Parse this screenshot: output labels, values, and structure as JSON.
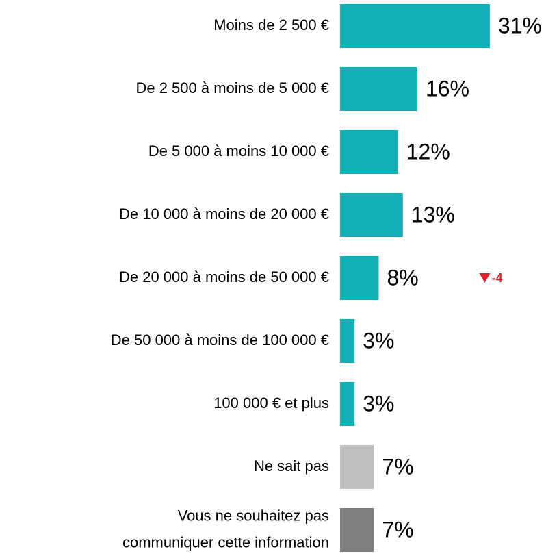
{
  "chart_data": {
    "type": "bar",
    "orientation": "horizontal",
    "categories": [
      "Moins de 2 500 €",
      "De 2 500 à moins de 5 000 €",
      "De 5 000 à moins 10 000 €",
      "De 10 000 à moins de 20 000 €",
      "De 20 000 à moins de 50 000 €",
      "De 50 000 à moins de 100 000 €",
      "100 000 € et plus",
      "Ne sait pas",
      "Vous ne souhaitez pas\ncommuniquer cette information"
    ],
    "values": [
      31,
      16,
      12,
      13,
      8,
      3,
      3,
      7,
      7
    ],
    "value_labels": [
      "31%",
      "16%",
      "12%",
      "13%",
      "8%",
      "3%",
      "3%",
      "7%",
      "7%"
    ],
    "colors": [
      "#14b0b8",
      "#14b0b8",
      "#14b0b8",
      "#14b0b8",
      "#14b0b8",
      "#14b0b8",
      "#14b0b8",
      "#bfbfbf",
      "#7f7f7f"
    ],
    "changes": [
      null,
      null,
      null,
      null,
      -4,
      null,
      null,
      null,
      null
    ],
    "change_color": "#e0202a"
  }
}
